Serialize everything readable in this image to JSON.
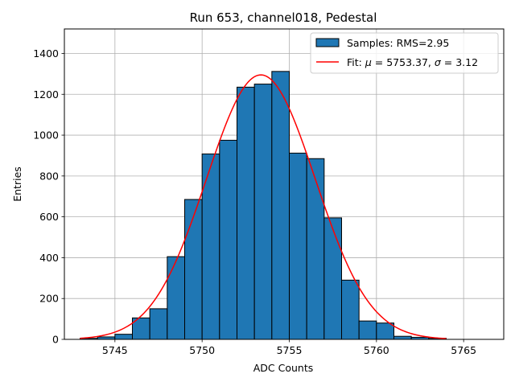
{
  "chart_data": {
    "type": "bar",
    "title": "Run 653, channel018, Pedestal",
    "xlabel": "ADC Counts",
    "ylabel": "Entries",
    "xlim": [
      5742.1,
      5767.3
    ],
    "ylim": [
      0,
      1520
    ],
    "grid": true,
    "legend_position": "top-right",
    "x_ticks": [
      5745,
      5750,
      5755,
      5760,
      5765
    ],
    "y_ticks": [
      0,
      200,
      400,
      600,
      800,
      1000,
      1200,
      1400
    ],
    "histogram": {
      "name": "Samples: RMS=2.95",
      "color": "#1f77b4",
      "edge_color": "#000000",
      "bin_edges": [
        5743,
        5744,
        5745,
        5746,
        5747,
        5748,
        5749,
        5750,
        5751,
        5752,
        5753,
        5754,
        5755,
        5756,
        5757,
        5758,
        5759,
        5760,
        5761,
        5762,
        5763,
        5764
      ],
      "counts": [
        5,
        12,
        25,
        105,
        150,
        405,
        685,
        908,
        975,
        1235,
        1250,
        1312,
        912,
        885,
        595,
        290,
        90,
        80,
        15,
        10,
        5
      ]
    },
    "fit": {
      "name": "Fit: μ = 5753.37, σ = 3.12",
      "label_prefix": "Fit: ",
      "mu_symbol": "μ",
      "mu_text": " = 5753.37, ",
      "sigma_symbol": "σ",
      "sigma_text": " = 3.12",
      "color": "#ff0000",
      "mu": 5753.37,
      "sigma": 3.12,
      "amplitude": 1295,
      "x_range": [
        5743,
        5764
      ]
    }
  }
}
